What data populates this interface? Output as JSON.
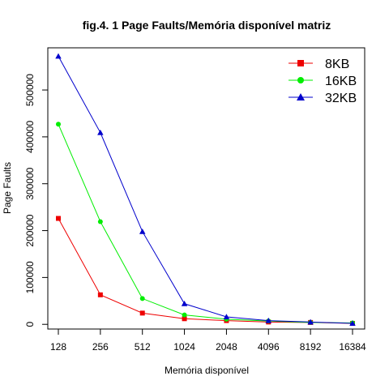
{
  "chart_data": {
    "type": "line",
    "title": "fig.4. 1 Page Faults/Memória disponível  matriz",
    "xlabel": "Memória disponível",
    "ylabel": "Page Faults",
    "categories": [
      "128",
      "256",
      "512",
      "1024",
      "2048",
      "4096",
      "8192",
      "16384"
    ],
    "yticks": [
      0,
      100000,
      200000,
      300000,
      400000,
      500000
    ],
    "ytick_labels": [
      "0",
      "100000",
      "200000",
      "300000",
      "400000",
      "500000"
    ],
    "ylim": [
      -10000,
      590000
    ],
    "grid": false,
    "legend_position": "top-right",
    "series": [
      {
        "name": "8KB",
        "color": "#ee0000",
        "marker": "square",
        "values": [
          226000,
          63000,
          24000,
          12000,
          8000,
          5000,
          4000,
          2000
        ]
      },
      {
        "name": "16KB",
        "color": "#00ee00",
        "marker": "circle",
        "values": [
          427000,
          219000,
          55000,
          20000,
          11000,
          7000,
          4000,
          3000
        ]
      },
      {
        "name": "32KB",
        "color": "#0000cc",
        "marker": "triangle",
        "values": [
          572000,
          409000,
          198000,
          44000,
          16000,
          8000,
          5000,
          2000
        ]
      }
    ]
  }
}
